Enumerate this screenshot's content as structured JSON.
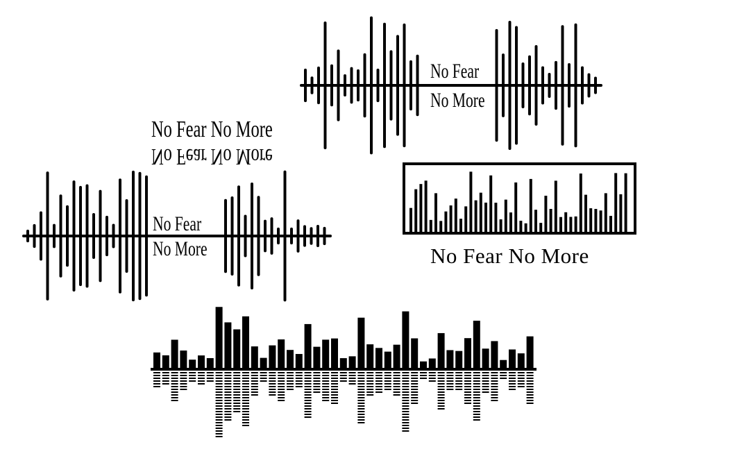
{
  "design_1": {
    "line1": "No Fear",
    "line2": "No More"
  },
  "design_2": {
    "title": "No Fear No More",
    "line1": "No Fear",
    "line2": "No More"
  },
  "design_3": {
    "caption": "No Fear No More"
  },
  "colors": {
    "ink": "#000000",
    "background": "#ffffff"
  }
}
